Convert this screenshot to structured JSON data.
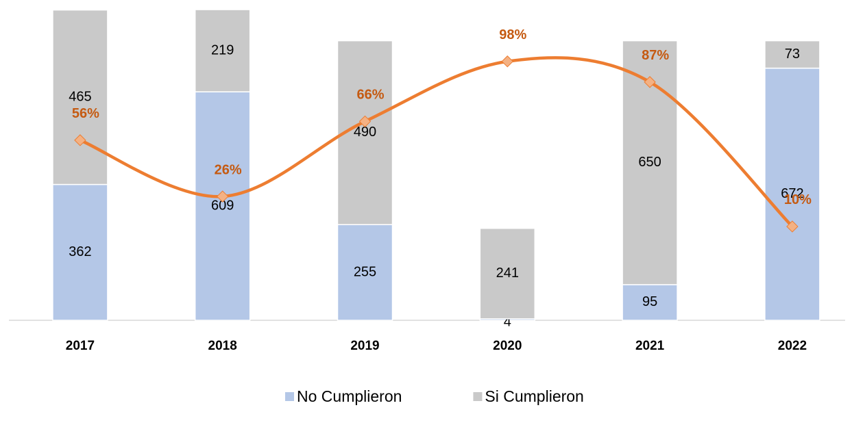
{
  "chart_data": {
    "type": "bar",
    "stacked": true,
    "categories": [
      "2017",
      "2018",
      "2019",
      "2020",
      "2021",
      "2022"
    ],
    "series": [
      {
        "name": "No Cumplieron",
        "color": "#b4c7e7",
        "values": [
          362,
          609,
          255,
          4,
          95,
          672
        ]
      },
      {
        "name": "Si Cumplieron",
        "color": "#c9c9c9",
        "values": [
          465,
          219,
          490,
          241,
          650,
          73
        ]
      },
      {
        "type": "line",
        "axis": "y2",
        "color": "#ed7d31",
        "marker_color": "#f4b183",
        "label_color": "#c55a11",
        "values": [
          56,
          26,
          66,
          98,
          87,
          10
        ],
        "value_labels": [
          "56%",
          "26%",
          "66%",
          "98%",
          "87%",
          "10%"
        ]
      }
    ],
    "ylim": [
      0,
      850
    ],
    "y2lim": [
      -40,
      130
    ],
    "legend": "bottom"
  }
}
